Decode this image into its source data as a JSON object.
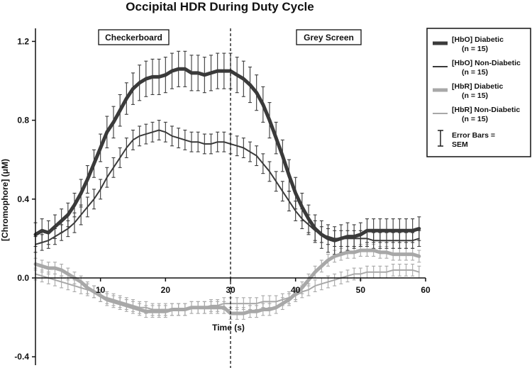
{
  "chart_data": {
    "type": "line",
    "title": "Occipital HDR During Duty Cycle",
    "xlabel": "Time (s)",
    "ylabel": "[Chromophore] (μM)",
    "xlim": [
      0,
      60
    ],
    "ylim": [
      -0.4,
      1.25
    ],
    "x_ticks": [
      10,
      20,
      30,
      40,
      50,
      60
    ],
    "x_tick_labels": [
      "10",
      "20",
      "30",
      "40",
      "50",
      "60"
    ],
    "y_ticks": [
      -0.4,
      0.0,
      0.4,
      0.8,
      1.2
    ],
    "y_tick_labels": [
      "-0.4",
      "0.0",
      "0.4",
      "0.8",
      "1.2"
    ],
    "grid": false,
    "legend_position": "right",
    "vline": {
      "x": 30,
      "style": "dashed"
    },
    "annotations": [
      {
        "label": "Checkerboard",
        "x": 14
      },
      {
        "label": "Grey Screen",
        "x": 45
      }
    ],
    "x": [
      0,
      1,
      2,
      3,
      4,
      5,
      6,
      7,
      8,
      9,
      10,
      11,
      12,
      13,
      14,
      15,
      16,
      17,
      18,
      19,
      20,
      21,
      22,
      23,
      24,
      25,
      26,
      27,
      28,
      29,
      30,
      31,
      32,
      33,
      34,
      35,
      36,
      37,
      38,
      39,
      40,
      41,
      42,
      43,
      44,
      45,
      46,
      47,
      48,
      49,
      50,
      51,
      52,
      53,
      54,
      55,
      56,
      57,
      58,
      59
    ],
    "series": [
      {
        "name": "[HbO] Diabetic",
        "n_label": "(n = 15)",
        "color": "#3a3a3a",
        "width": 5,
        "values": [
          0.22,
          0.24,
          0.23,
          0.26,
          0.29,
          0.32,
          0.37,
          0.43,
          0.5,
          0.58,
          0.66,
          0.74,
          0.79,
          0.85,
          0.91,
          0.96,
          0.99,
          1.01,
          1.02,
          1.02,
          1.03,
          1.05,
          1.06,
          1.06,
          1.04,
          1.04,
          1.03,
          1.04,
          1.05,
          1.05,
          1.05,
          1.03,
          1.01,
          0.98,
          0.94,
          0.88,
          0.8,
          0.71,
          0.62,
          0.52,
          0.43,
          0.36,
          0.3,
          0.25,
          0.22,
          0.2,
          0.19,
          0.2,
          0.21,
          0.21,
          0.22,
          0.24,
          0.24,
          0.24,
          0.24,
          0.24,
          0.24,
          0.24,
          0.24,
          0.25
        ],
        "sem": [
          0.06,
          0.06,
          0.06,
          0.06,
          0.06,
          0.06,
          0.06,
          0.07,
          0.07,
          0.07,
          0.07,
          0.08,
          0.08,
          0.08,
          0.08,
          0.08,
          0.09,
          0.09,
          0.09,
          0.09,
          0.09,
          0.09,
          0.09,
          0.09,
          0.09,
          0.09,
          0.09,
          0.09,
          0.09,
          0.09,
          0.09,
          0.09,
          0.09,
          0.09,
          0.09,
          0.09,
          0.09,
          0.08,
          0.08,
          0.08,
          0.08,
          0.07,
          0.07,
          0.07,
          0.07,
          0.07,
          0.07,
          0.07,
          0.07,
          0.06,
          0.06,
          0.06,
          0.06,
          0.06,
          0.06,
          0.06,
          0.06,
          0.06,
          0.06,
          0.06
        ]
      },
      {
        "name": "[HbO] Non-Diabetic",
        "n_label": "(n = 15)",
        "color": "#3a3a3a",
        "width": 2,
        "values": [
          0.17,
          0.18,
          0.19,
          0.21,
          0.23,
          0.25,
          0.28,
          0.32,
          0.36,
          0.4,
          0.45,
          0.51,
          0.56,
          0.61,
          0.66,
          0.7,
          0.72,
          0.73,
          0.74,
          0.75,
          0.74,
          0.72,
          0.71,
          0.7,
          0.69,
          0.69,
          0.68,
          0.68,
          0.69,
          0.69,
          0.68,
          0.67,
          0.66,
          0.64,
          0.62,
          0.58,
          0.54,
          0.49,
          0.44,
          0.39,
          0.34,
          0.3,
          0.27,
          0.24,
          0.22,
          0.21,
          0.2,
          0.2,
          0.2,
          0.2,
          0.2,
          0.2,
          0.19,
          0.19,
          0.19,
          0.19,
          0.19,
          0.19,
          0.19,
          0.2
        ],
        "sem": [
          0.04,
          0.04,
          0.04,
          0.04,
          0.04,
          0.04,
          0.05,
          0.05,
          0.05,
          0.05,
          0.05,
          0.05,
          0.05,
          0.05,
          0.05,
          0.05,
          0.05,
          0.05,
          0.05,
          0.05,
          0.05,
          0.05,
          0.05,
          0.05,
          0.05,
          0.05,
          0.05,
          0.05,
          0.05,
          0.05,
          0.05,
          0.05,
          0.05,
          0.05,
          0.05,
          0.05,
          0.05,
          0.05,
          0.05,
          0.05,
          0.05,
          0.05,
          0.05,
          0.05,
          0.04,
          0.04,
          0.04,
          0.04,
          0.04,
          0.04,
          0.04,
          0.04,
          0.04,
          0.04,
          0.04,
          0.04,
          0.04,
          0.04,
          0.04,
          0.04
        ]
      },
      {
        "name": "[HbR] Diabetic",
        "n_label": "(n = 15)",
        "color": "#a8a8a8",
        "width": 5,
        "values": [
          0.07,
          0.06,
          0.05,
          0.05,
          0.04,
          0.02,
          0.0,
          -0.02,
          -0.05,
          -0.07,
          -0.09,
          -0.11,
          -0.12,
          -0.13,
          -0.14,
          -0.15,
          -0.16,
          -0.17,
          -0.17,
          -0.17,
          -0.17,
          -0.16,
          -0.16,
          -0.16,
          -0.15,
          -0.15,
          -0.15,
          -0.15,
          -0.15,
          -0.15,
          -0.18,
          -0.18,
          -0.18,
          -0.17,
          -0.17,
          -0.16,
          -0.16,
          -0.15,
          -0.13,
          -0.11,
          -0.08,
          -0.05,
          -0.01,
          0.03,
          0.06,
          0.09,
          0.11,
          0.12,
          0.13,
          0.13,
          0.14,
          0.14,
          0.14,
          0.13,
          0.13,
          0.12,
          0.12,
          0.12,
          0.12,
          0.11
        ],
        "sem": [
          0.03,
          0.03,
          0.03,
          0.03,
          0.03,
          0.03,
          0.03,
          0.03,
          0.03,
          0.03,
          0.03,
          0.03,
          0.03,
          0.03,
          0.03,
          0.03,
          0.03,
          0.03,
          0.03,
          0.03,
          0.03,
          0.03,
          0.03,
          0.03,
          0.03,
          0.03,
          0.03,
          0.03,
          0.03,
          0.03,
          0.03,
          0.03,
          0.03,
          0.03,
          0.03,
          0.03,
          0.03,
          0.03,
          0.03,
          0.03,
          0.03,
          0.03,
          0.03,
          0.03,
          0.03,
          0.03,
          0.03,
          0.03,
          0.03,
          0.03,
          0.03,
          0.03,
          0.03,
          0.03,
          0.03,
          0.03,
          0.03,
          0.03,
          0.03,
          0.03
        ]
      },
      {
        "name": "[HbR] Non-Diabetic",
        "n_label": "(n = 15)",
        "color": "#a8a8a8",
        "width": 2,
        "values": [
          0.02,
          0.01,
          0.0,
          -0.01,
          -0.02,
          -0.03,
          -0.04,
          -0.05,
          -0.06,
          -0.07,
          -0.09,
          -0.1,
          -0.11,
          -0.12,
          -0.13,
          -0.14,
          -0.15,
          -0.15,
          -0.16,
          -0.16,
          -0.16,
          -0.16,
          -0.16,
          -0.16,
          -0.15,
          -0.15,
          -0.15,
          -0.14,
          -0.14,
          -0.13,
          -0.13,
          -0.13,
          -0.13,
          -0.13,
          -0.13,
          -0.12,
          -0.12,
          -0.12,
          -0.11,
          -0.1,
          -0.09,
          -0.07,
          -0.06,
          -0.04,
          -0.03,
          -0.02,
          -0.01,
          0.0,
          0.01,
          0.02,
          0.02,
          0.03,
          0.03,
          0.03,
          0.03,
          0.04,
          0.04,
          0.04,
          0.04,
          0.03
        ],
        "sem": [
          0.03,
          0.03,
          0.03,
          0.03,
          0.03,
          0.03,
          0.03,
          0.03,
          0.03,
          0.03,
          0.03,
          0.03,
          0.03,
          0.03,
          0.03,
          0.03,
          0.03,
          0.03,
          0.03,
          0.03,
          0.03,
          0.03,
          0.03,
          0.03,
          0.03,
          0.03,
          0.03,
          0.03,
          0.03,
          0.03,
          0.03,
          0.03,
          0.03,
          0.03,
          0.03,
          0.03,
          0.03,
          0.03,
          0.03,
          0.03,
          0.03,
          0.03,
          0.03,
          0.03,
          0.03,
          0.03,
          0.03,
          0.03,
          0.03,
          0.03,
          0.03,
          0.03,
          0.03,
          0.03,
          0.03,
          0.03,
          0.03,
          0.03,
          0.03,
          0.03
        ]
      }
    ],
    "error_bar_legend": {
      "line1": "Error Bars =",
      "line2": "SEM"
    }
  }
}
